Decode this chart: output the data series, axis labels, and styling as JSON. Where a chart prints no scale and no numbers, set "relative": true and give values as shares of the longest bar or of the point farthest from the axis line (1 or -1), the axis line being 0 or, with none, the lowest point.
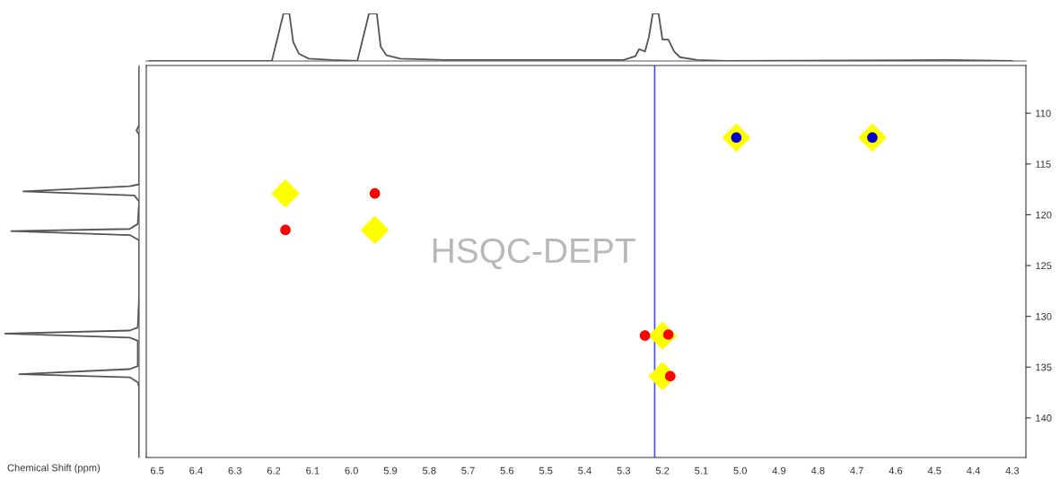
{
  "chart_data": [
    {
      "type": "line",
      "relative": true,
      "xlim": [
        6.528,
        4.265
      ],
      "color": "#555555",
      "x": [
        6.52,
        6.205,
        6.19,
        6.175,
        6.16,
        6.15,
        6.135,
        6.11,
        6.05,
        5.985,
        5.97,
        5.955,
        5.935,
        5.925,
        5.91,
        5.875,
        5.76,
        5.3,
        5.27,
        5.26,
        5.245,
        5.235,
        5.225,
        5.21,
        5.2,
        5.185,
        5.17,
        5.155,
        5.11,
        5.04,
        4.465,
        4.3
      ],
      "values": [
        0,
        0,
        0.5,
        1,
        1,
        0.4,
        0.15,
        0.05,
        0.02,
        0,
        0.5,
        1,
        1,
        0.3,
        0.12,
        0.05,
        0.02,
        0.02,
        0.1,
        0.25,
        0.2,
        0.5,
        1,
        1,
        0.45,
        0.45,
        0.2,
        0.08,
        0.02,
        0,
        0.02,
        0
      ]
    },
    {
      "type": "line",
      "orientation": "horizontal",
      "relative": true,
      "ylim": [
        143.9,
        105.3
      ],
      "color": "#555555",
      "x": [
        105.5,
        111.2,
        111.7,
        112.1,
        117.0,
        117.2,
        117.7,
        118.1,
        118.7,
        120.9,
        121.4,
        121.6,
        122.0,
        122.5,
        128.0,
        131.1,
        131.4,
        131.7,
        132.1,
        132.4,
        134.9,
        135.2,
        135.7,
        136.0,
        136.5,
        137.0,
        143.9
      ],
      "values": [
        0,
        0,
        -0.02,
        0,
        0,
        -0.07,
        -0.86,
        -0.035,
        0,
        -0.01,
        -0.07,
        -0.95,
        -0.07,
        0,
        0,
        -0.01,
        -0.07,
        -1,
        -0.07,
        -0.01,
        -0.01,
        -0.07,
        -0.89,
        -0.07,
        -0.01,
        0,
        0
      ]
    },
    {
      "type": "scatter",
      "xlabel": "Chemical Shift (ppm)",
      "xlim": [
        6.528,
        4.265
      ],
      "ylim": [
        143.9,
        105.3
      ],
      "xticks": [
        6.5,
        6.4,
        6.3,
        6.2,
        6.1,
        {
          "value": 6.0,
          "label": "6.0"
        },
        5.9,
        5.8,
        5.7,
        5.6,
        5.5,
        5.4,
        5.3,
        5.2,
        5.1,
        {
          "value": 5.0,
          "label": "5.0"
        },
        4.9,
        4.8,
        4.7,
        4.6,
        4.5,
        4.4,
        4.3
      ],
      "yticks": [
        110,
        115,
        120,
        125,
        130,
        135,
        140
      ],
      "grid": false,
      "legend": false,
      "annotations": [
        "HSQC-DEPT"
      ],
      "ref_lines": [
        {
          "axis": "x",
          "value": 5.22,
          "color": "#4050ff"
        }
      ],
      "series": [
        {
          "color": "#ffff00",
          "marker": "diamond",
          "x": [
            6.17,
            5.94,
            5.2,
            5.2,
            5.01,
            4.66
          ],
          "values": [
            117.9,
            121.5,
            131.9,
            135.9,
            112.4,
            112.4
          ]
        },
        {
          "color": "#ff0000",
          "marker": "circle",
          "x": [
            6.17,
            5.94,
            5.245,
            5.185,
            5.18
          ],
          "values": [
            121.5,
            117.9,
            131.9,
            131.8,
            135.9
          ]
        },
        {
          "color": "#0000cc",
          "marker": "circle",
          "x": [
            5.01,
            4.66
          ],
          "values": [
            112.4,
            112.4
          ]
        }
      ]
    }
  ]
}
